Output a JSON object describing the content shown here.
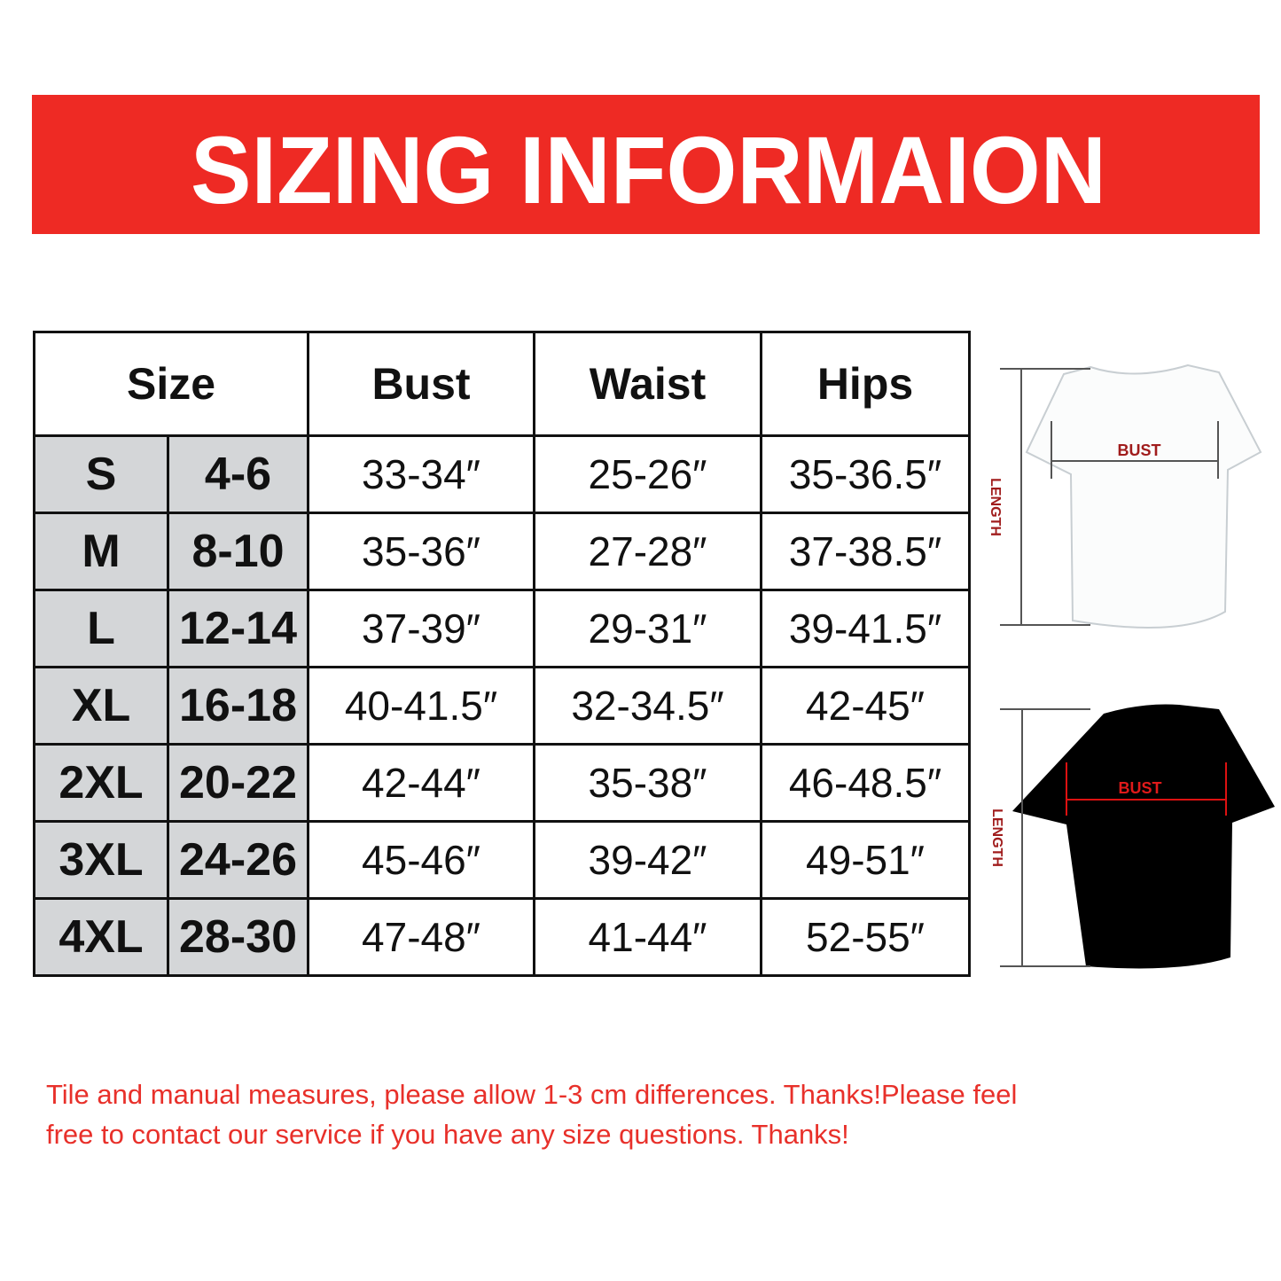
{
  "banner": {
    "title": "SIZING INFORMAION",
    "color": "#ee2a24"
  },
  "table": {
    "headers": [
      "Size",
      "Bust",
      "Waist",
      "Hips"
    ],
    "rows": [
      {
        "size": "S",
        "us": "4-6",
        "bust": "33-34″",
        "waist": "25-26″",
        "hips": "35-36.5″"
      },
      {
        "size": "M",
        "us": "8-10",
        "bust": "35-36″",
        "waist": "27-28″",
        "hips": "37-38.5″"
      },
      {
        "size": "L",
        "us": "12-14",
        "bust": "37-39″",
        "waist": "29-31″",
        "hips": "39-41.5″"
      },
      {
        "size": "XL",
        "us": "16-18",
        "bust": "40-41.5″",
        "waist": "32-34.5″",
        "hips": "42-45″"
      },
      {
        "size": "2XL",
        "us": "20-22",
        "bust": "42-44″",
        "waist": "35-38″",
        "hips": "46-48.5″"
      },
      {
        "size": "3XL",
        "us": "24-26",
        "bust": "45-46″",
        "waist": "39-42″",
        "hips": "49-51″"
      },
      {
        "size": "4XL",
        "us": "28-30",
        "bust": "47-48″",
        "waist": "41-44″",
        "hips": "52-55″"
      }
    ],
    "size_column_color": "#d4d6d8"
  },
  "diagrams": {
    "white_shirt": {
      "bust_label": "BUST",
      "length_label": "LENGTH"
    },
    "black_shirt": {
      "bust_label": "BUST",
      "length_label": "LENGTH"
    }
  },
  "note": {
    "line1": "Tile and manual measures, please allow 1-3 cm differences. Thanks!Please feel",
    "line2": "free to contact our service if you have any size questions. Thanks!",
    "color": "#e8302a"
  }
}
